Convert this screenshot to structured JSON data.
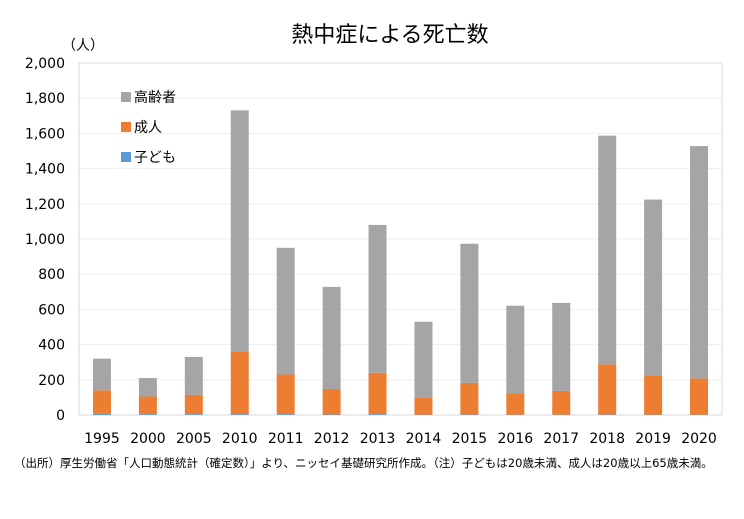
{
  "chart_data": {
    "type": "bar",
    "stacked": true,
    "title": "熱中症による死亡数",
    "unit_label": "（人）",
    "categories": [
      "1995",
      "2000",
      "2005",
      "2010",
      "2011",
      "2012",
      "2013",
      "2014",
      "2015",
      "2016",
      "2017",
      "2018",
      "2019",
      "2020"
    ],
    "series": [
      {
        "name": "子ども",
        "color": "#5b9bd5",
        "values": [
          10,
          5,
          5,
          5,
          5,
          3,
          5,
          2,
          3,
          2,
          2,
          3,
          2,
          2
        ]
      },
      {
        "name": "成人",
        "color": "#ed7d31",
        "values": [
          130,
          100,
          110,
          357,
          225,
          145,
          235,
          95,
          180,
          120,
          135,
          285,
          220,
          205
        ]
      },
      {
        "name": "高齢者",
        "color": "#a5a5a5",
        "values": [
          180,
          105,
          215,
          1369,
          720,
          580,
          840,
          433,
          790,
          499,
          500,
          1299,
          1002,
          1321
        ]
      }
    ],
    "yticks": [
      "0",
      "200",
      "400",
      "600",
      "800",
      "1,000",
      "1,200",
      "1,400",
      "1,600",
      "1,800",
      "2,000"
    ],
    "ylim": [
      0,
      2000
    ],
    "grid": true,
    "legend_position": "top-left"
  },
  "source_note": "（出所）厚生労働省「人口動態統計（確定数）」より、ニッセイ基礎研究所作成。（注）子どもは20歳未満、成人は20歳以上65歳未満。"
}
